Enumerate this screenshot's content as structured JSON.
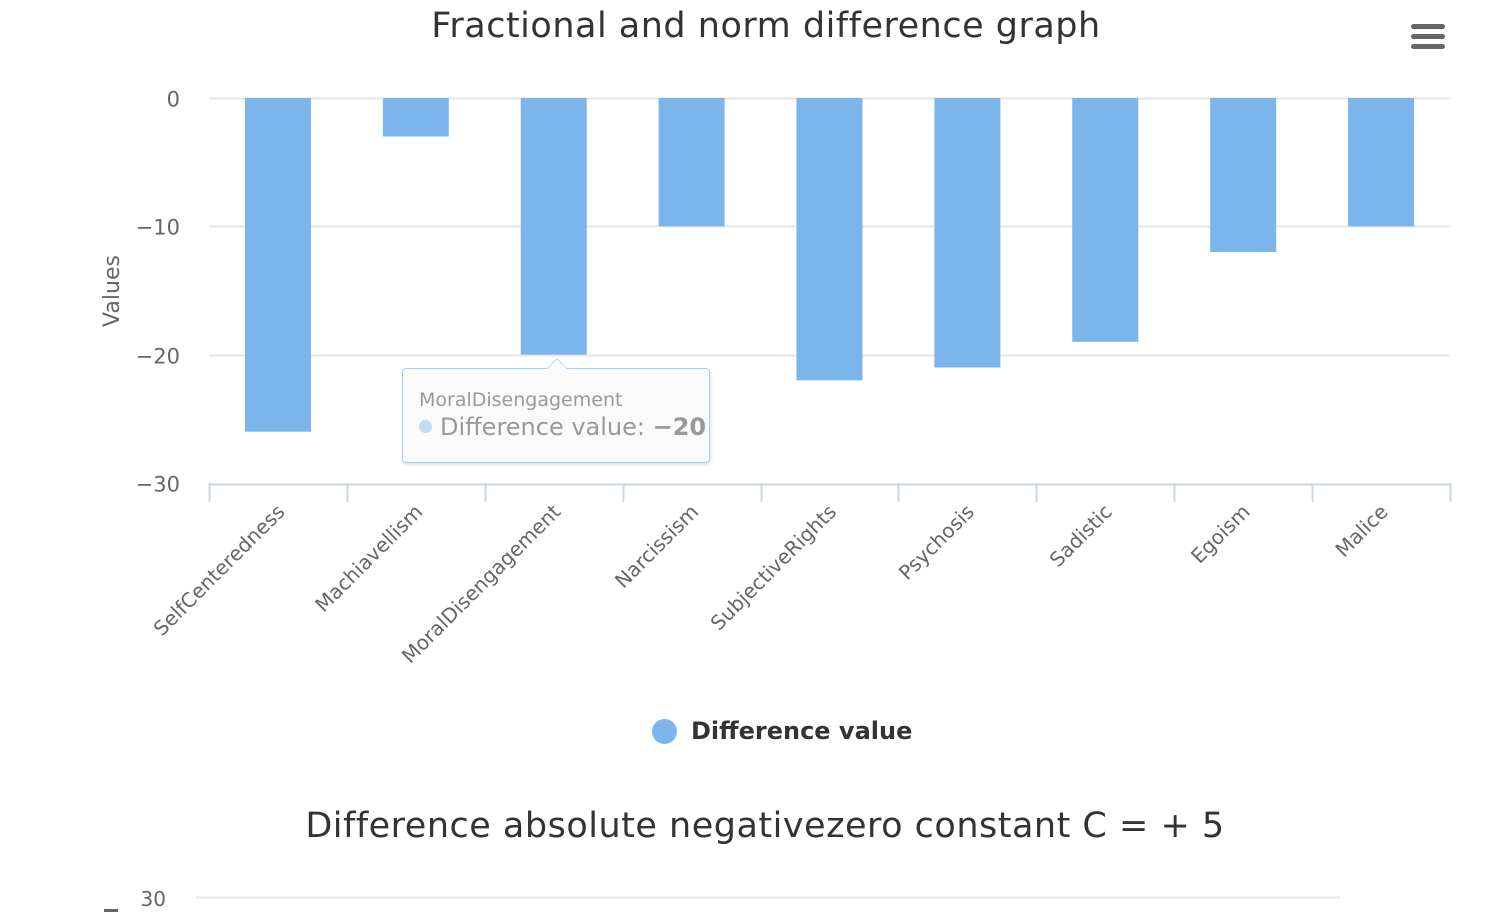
{
  "page": {
    "menu_icon": "hamburger-menu-icon"
  },
  "chart_data": [
    {
      "type": "bar",
      "title": "Fractional and norm difference graph",
      "xlabel": "",
      "ylabel": "Values",
      "ylim": [
        -30,
        0
      ],
      "yticks": [
        0,
        -10,
        -20,
        -30
      ],
      "ytick_labels": [
        "0",
        "−10",
        "−20",
        "−30"
      ],
      "grid": true,
      "categories": [
        "SelfCenteredness",
        "Machiavellism",
        "MoralDisengagement",
        "Narcissism",
        "SubjectiveRights",
        "Psychosis",
        "Sadistic",
        "Egoism",
        "Malice"
      ],
      "series": [
        {
          "name": "Difference value",
          "color": "#7cb5ec",
          "values": [
            -26,
            -3,
            -20,
            -10,
            -22,
            -21,
            -19,
            -12,
            -10
          ]
        }
      ],
      "legend": {
        "position": "bottom-center",
        "label": "Difference value"
      },
      "tooltip": {
        "category": "MoralDisengagement",
        "series_label": "Difference value: ",
        "value": "−20"
      }
    },
    {
      "type": "bar",
      "title": "Difference absolute negativezero constant C = + 5",
      "ytick_labels": [
        "30"
      ],
      "grid": true
    }
  ]
}
